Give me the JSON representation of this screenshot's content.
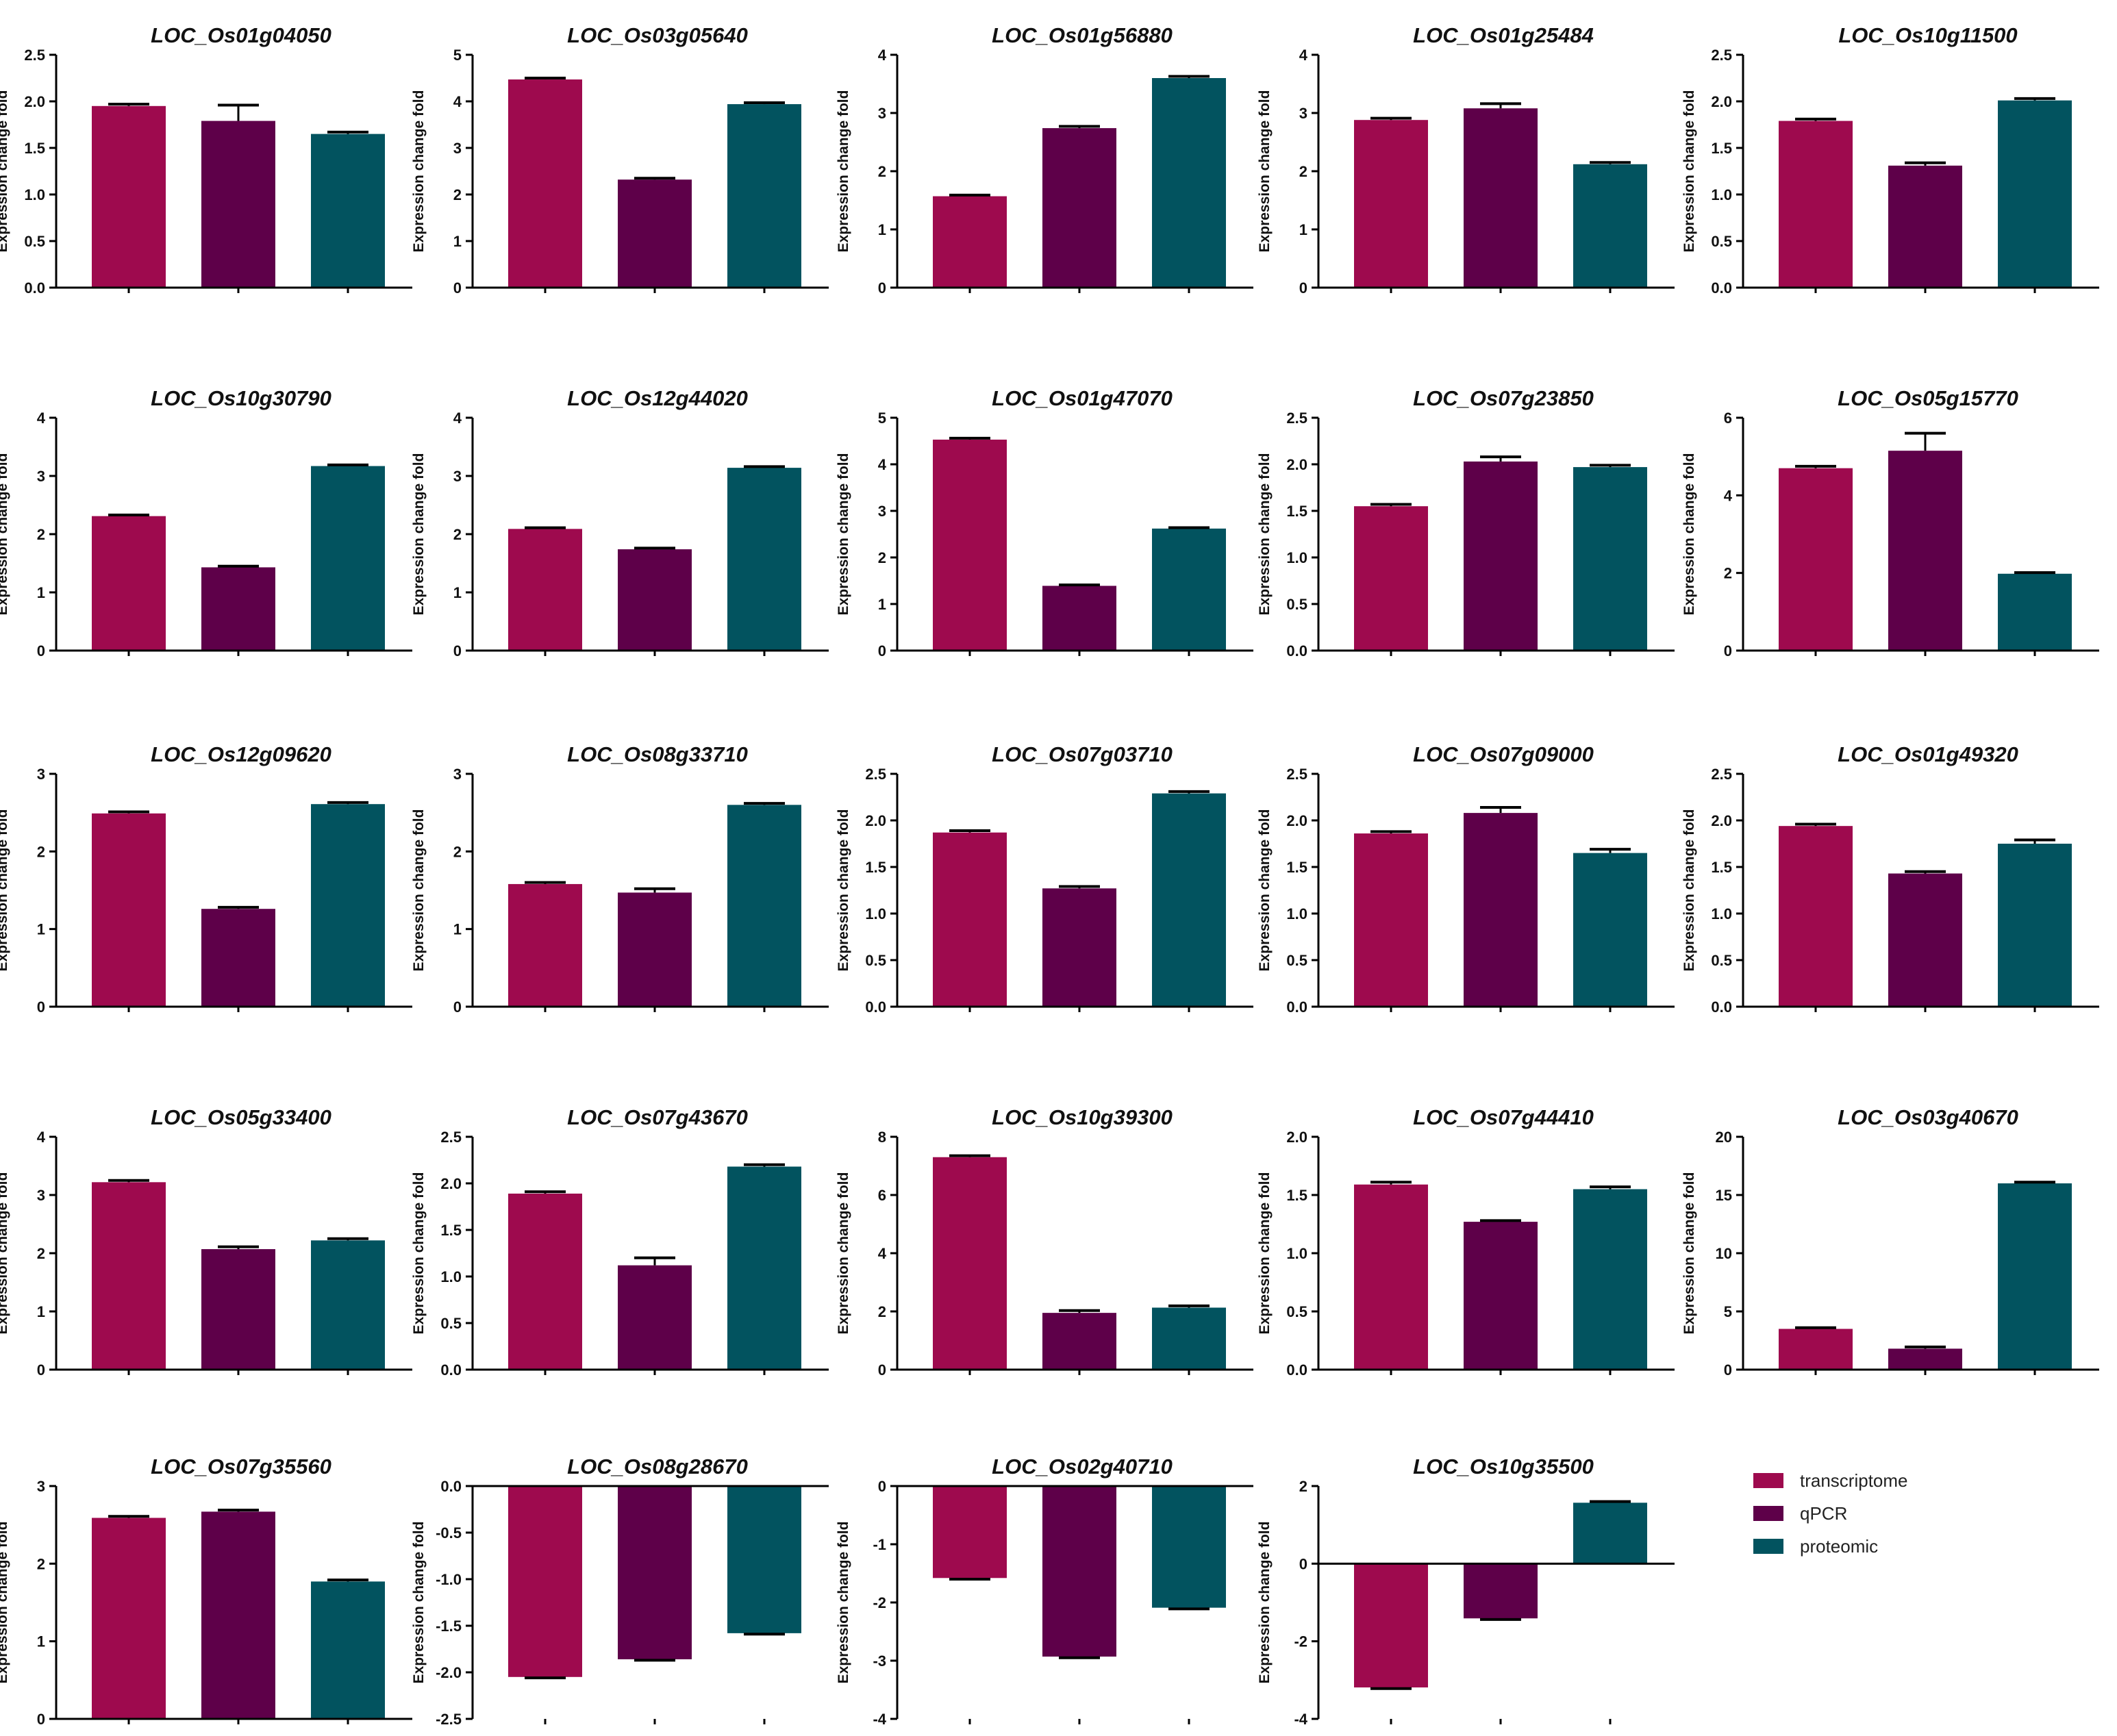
{
  "colors": {
    "transcriptome": "#9e0a4e",
    "qPCR": "#5e0049",
    "proteomic": "#02535f",
    "axis": "#000000"
  },
  "legend": {
    "items": [
      {
        "label": "transcriptome",
        "color": "#9e0a4e"
      },
      {
        "label": "qPCR",
        "color": "#5e0049"
      },
      {
        "label": "proteomic",
        "color": "#02535f"
      }
    ]
  },
  "chart_data": [
    {
      "type": "bar",
      "title": "LOC_Os01g04050",
      "ylabel": "Expression change fold",
      "series": [
        "transcriptome",
        "qPCR",
        "proteomic"
      ],
      "values": [
        1.95,
        1.79,
        1.65
      ],
      "errors": [
        0.02,
        0.17,
        0.02
      ],
      "ylim": [
        0,
        2.5
      ],
      "ticks": [
        "0.0",
        "0.5",
        "1.0",
        "1.5",
        "2.0",
        "2.5"
      ]
    },
    {
      "type": "bar",
      "title": "LOC_Os03g05640",
      "ylabel": "Expression change fold",
      "series": [
        "transcriptome",
        "qPCR",
        "proteomic"
      ],
      "values": [
        4.47,
        2.32,
        3.94
      ],
      "errors": [
        0.03,
        0.03,
        0.03
      ],
      "ylim": [
        0,
        5
      ],
      "ticks": [
        "0",
        "1",
        "2",
        "3",
        "4",
        "5"
      ]
    },
    {
      "type": "bar",
      "title": "LOC_Os01g56880",
      "ylabel": "Expression change fold",
      "series": [
        "transcriptome",
        "qPCR",
        "proteomic"
      ],
      "values": [
        1.57,
        2.74,
        3.6
      ],
      "errors": [
        0.02,
        0.03,
        0.03
      ],
      "ylim": [
        0,
        4
      ],
      "ticks": [
        "0",
        "1",
        "2",
        "3",
        "4"
      ]
    },
    {
      "type": "bar",
      "title": "LOC_Os01g25484",
      "ylabel": "Expression change fold",
      "series": [
        "transcriptome",
        "qPCR",
        "proteomic"
      ],
      "values": [
        2.88,
        3.08,
        2.12
      ],
      "errors": [
        0.03,
        0.08,
        0.03
      ],
      "ylim": [
        0,
        4
      ],
      "ticks": [
        "0",
        "1",
        "2",
        "3",
        "4"
      ]
    },
    {
      "type": "bar",
      "title": "LOC_Os10g11500",
      "ylabel": "Expression change fold",
      "series": [
        "transcriptome",
        "qPCR",
        "proteomic"
      ],
      "values": [
        1.79,
        1.31,
        2.01
      ],
      "errors": [
        0.02,
        0.03,
        0.02
      ],
      "ylim": [
        0,
        2.5
      ],
      "ticks": [
        "0.0",
        "0.5",
        "1.0",
        "1.5",
        "2.0",
        "2.5"
      ]
    },
    {
      "type": "bar",
      "title": "LOC_Os10g30790",
      "ylabel": "Expression change fold",
      "series": [
        "transcriptome",
        "qPCR",
        "proteomic"
      ],
      "values": [
        2.31,
        1.43,
        3.17
      ],
      "errors": [
        0.02,
        0.02,
        0.02
      ],
      "ylim": [
        0,
        4
      ],
      "ticks": [
        "0",
        "1",
        "2",
        "3",
        "4"
      ]
    },
    {
      "type": "bar",
      "title": "LOC_Os12g44020",
      "ylabel": "Expression change fold",
      "series": [
        "transcriptome",
        "qPCR",
        "proteomic"
      ],
      "values": [
        2.09,
        1.74,
        3.14
      ],
      "errors": [
        0.02,
        0.02,
        0.02
      ],
      "ylim": [
        0,
        4
      ],
      "ticks": [
        "0",
        "1",
        "2",
        "3",
        "4"
      ]
    },
    {
      "type": "bar",
      "title": "LOC_Os01g47070",
      "ylabel": "Expression change fold",
      "series": [
        "transcriptome",
        "qPCR",
        "proteomic"
      ],
      "values": [
        4.53,
        1.39,
        2.62
      ],
      "errors": [
        0.03,
        0.02,
        0.02
      ],
      "ylim": [
        0,
        5
      ],
      "ticks": [
        "0",
        "1",
        "2",
        "3",
        "4",
        "5"
      ]
    },
    {
      "type": "bar",
      "title": "LOC_Os07g23850",
      "ylabel": "Expression change fold",
      "series": [
        "transcriptome",
        "qPCR",
        "proteomic"
      ],
      "values": [
        1.55,
        2.03,
        1.97
      ],
      "errors": [
        0.02,
        0.05,
        0.02
      ],
      "ylim": [
        0,
        2.5
      ],
      "ticks": [
        "0.0",
        "0.5",
        "1.0",
        "1.5",
        "2.0",
        "2.5"
      ]
    },
    {
      "type": "bar",
      "title": "LOC_Os05g15770",
      "ylabel": "Expression change fold",
      "series": [
        "transcriptome",
        "qPCR",
        "proteomic"
      ],
      "values": [
        4.7,
        5.15,
        1.98
      ],
      "errors": [
        0.05,
        0.45,
        0.03
      ],
      "ylim": [
        0,
        6
      ],
      "ticks": [
        "0",
        "2",
        "4",
        "6"
      ]
    },
    {
      "type": "bar",
      "title": "LOC_Os12g09620",
      "ylabel": "Expression change fold",
      "series": [
        "transcriptome",
        "qPCR",
        "proteomic"
      ],
      "values": [
        2.49,
        1.26,
        2.61
      ],
      "errors": [
        0.02,
        0.02,
        0.02
      ],
      "ylim": [
        0,
        3
      ],
      "ticks": [
        "0",
        "1",
        "2",
        "3"
      ]
    },
    {
      "type": "bar",
      "title": "LOC_Os08g33710",
      "ylabel": "Expression change fold",
      "series": [
        "transcriptome",
        "qPCR",
        "proteomic"
      ],
      "values": [
        1.58,
        1.47,
        2.6
      ],
      "errors": [
        0.02,
        0.05,
        0.02
      ],
      "ylim": [
        0,
        3
      ],
      "ticks": [
        "0",
        "1",
        "2",
        "3"
      ]
    },
    {
      "type": "bar",
      "title": "LOC_Os07g03710",
      "ylabel": "Expression change fold",
      "series": [
        "transcriptome",
        "qPCR",
        "proteomic"
      ],
      "values": [
        1.87,
        1.27,
        2.29
      ],
      "errors": [
        0.02,
        0.02,
        0.02
      ],
      "ylim": [
        0,
        2.5
      ],
      "ticks": [
        "0.0",
        "0.5",
        "1.0",
        "1.5",
        "2.0",
        "2.5"
      ]
    },
    {
      "type": "bar",
      "title": "LOC_Os07g09000",
      "ylabel": "Expression change fold",
      "series": [
        "transcriptome",
        "qPCR",
        "proteomic"
      ],
      "values": [
        1.86,
        2.08,
        1.65
      ],
      "errors": [
        0.02,
        0.06,
        0.04
      ],
      "ylim": [
        0,
        2.5
      ],
      "ticks": [
        "0.0",
        "0.5",
        "1.0",
        "1.5",
        "2.0",
        "2.5"
      ]
    },
    {
      "type": "bar",
      "title": "LOC_Os01g49320",
      "ylabel": "Expression change fold",
      "series": [
        "transcriptome",
        "qPCR",
        "proteomic"
      ],
      "values": [
        1.94,
        1.43,
        1.75
      ],
      "errors": [
        0.02,
        0.02,
        0.04
      ],
      "ylim": [
        0,
        2.5
      ],
      "ticks": [
        "0.0",
        "0.5",
        "1.0",
        "1.5",
        "2.0",
        "2.5"
      ]
    },
    {
      "type": "bar",
      "title": "LOC_Os05g33400",
      "ylabel": "Expression change fold",
      "series": [
        "transcriptome",
        "qPCR",
        "proteomic"
      ],
      "values": [
        3.22,
        2.07,
        2.22
      ],
      "errors": [
        0.03,
        0.04,
        0.03
      ],
      "ylim": [
        0,
        4
      ],
      "ticks": [
        "0",
        "1",
        "2",
        "3",
        "4"
      ]
    },
    {
      "type": "bar",
      "title": "LOC_Os07g43670",
      "ylabel": "Expression change fold",
      "series": [
        "transcriptome",
        "qPCR",
        "proteomic"
      ],
      "values": [
        1.89,
        1.12,
        2.18
      ],
      "errors": [
        0.02,
        0.08,
        0.02
      ],
      "ylim": [
        0,
        2.5
      ],
      "ticks": [
        "0.0",
        "0.5",
        "1.0",
        "1.5",
        "2.0",
        "2.5"
      ]
    },
    {
      "type": "bar",
      "title": "LOC_Os10g39300",
      "ylabel": "Expression change fold",
      "series": [
        "transcriptome",
        "qPCR",
        "proteomic"
      ],
      "values": [
        7.3,
        1.95,
        2.13
      ],
      "errors": [
        0.05,
        0.08,
        0.06
      ],
      "ylim": [
        0,
        8
      ],
      "ticks": [
        "0",
        "2",
        "4",
        "6",
        "8"
      ]
    },
    {
      "type": "bar",
      "title": "LOC_Os07g44410",
      "ylabel": "Expression change fold",
      "series": [
        "transcriptome",
        "qPCR",
        "proteomic"
      ],
      "values": [
        1.59,
        1.27,
        1.55
      ],
      "errors": [
        0.02,
        0.01,
        0.02
      ],
      "ylim": [
        0,
        2.0
      ],
      "ticks": [
        "0.0",
        "0.5",
        "1.0",
        "1.5",
        "2.0"
      ]
    },
    {
      "type": "bar",
      "title": "LOC_Os03g40670",
      "ylabel": "Expression change fold",
      "series": [
        "transcriptome",
        "qPCR",
        "proteomic"
      ],
      "values": [
        3.5,
        1.8,
        16.0
      ],
      "errors": [
        0.1,
        0.15,
        0.1
      ],
      "ylim": [
        0,
        20
      ],
      "ticks": [
        "0",
        "5",
        "10",
        "15",
        "20"
      ]
    },
    {
      "type": "bar",
      "title": "LOC_Os07g35560",
      "ylabel": "Expression change fold",
      "series": [
        "transcriptome",
        "qPCR",
        "proteomic"
      ],
      "values": [
        2.59,
        2.67,
        1.77
      ],
      "errors": [
        0.02,
        0.02,
        0.02
      ],
      "ylim": [
        0,
        3
      ],
      "ticks": [
        "0",
        "1",
        "2",
        "3"
      ]
    },
    {
      "type": "bar",
      "title": "LOC_Os08g28670",
      "ylabel": "Expression change fold",
      "series": [
        "transcriptome",
        "qPCR",
        "proteomic"
      ],
      "values": [
        -2.05,
        -1.86,
        -1.58
      ],
      "errors": [
        0.01,
        0.01,
        0.01
      ],
      "ylim": [
        -2.5,
        0
      ],
      "ticks": [
        "-2.5",
        "-2.0",
        "-1.5",
        "-1.0",
        "-0.5",
        "0.0"
      ]
    },
    {
      "type": "bar",
      "title": "LOC_Os02g40710",
      "ylabel": "Expression change fold",
      "series": [
        "transcriptome",
        "qPCR",
        "proteomic"
      ],
      "values": [
        -1.58,
        -2.93,
        -2.09
      ],
      "errors": [
        0.02,
        0.02,
        0.02
      ],
      "ylim": [
        -4,
        0
      ],
      "ticks": [
        "-4",
        "-3",
        "-2",
        "-1",
        "0"
      ]
    },
    {
      "type": "bar",
      "title": "LOC_Os10g35500",
      "ylabel": "Expression change fold",
      "series": [
        "transcriptome",
        "qPCR",
        "proteomic"
      ],
      "values": [
        -3.19,
        -1.41,
        1.57
      ],
      "errors": [
        0.03,
        0.03,
        0.03
      ],
      "ylim": [
        -4,
        2
      ],
      "ticks": [
        "-4",
        "-2",
        "0",
        "2"
      ]
    }
  ]
}
